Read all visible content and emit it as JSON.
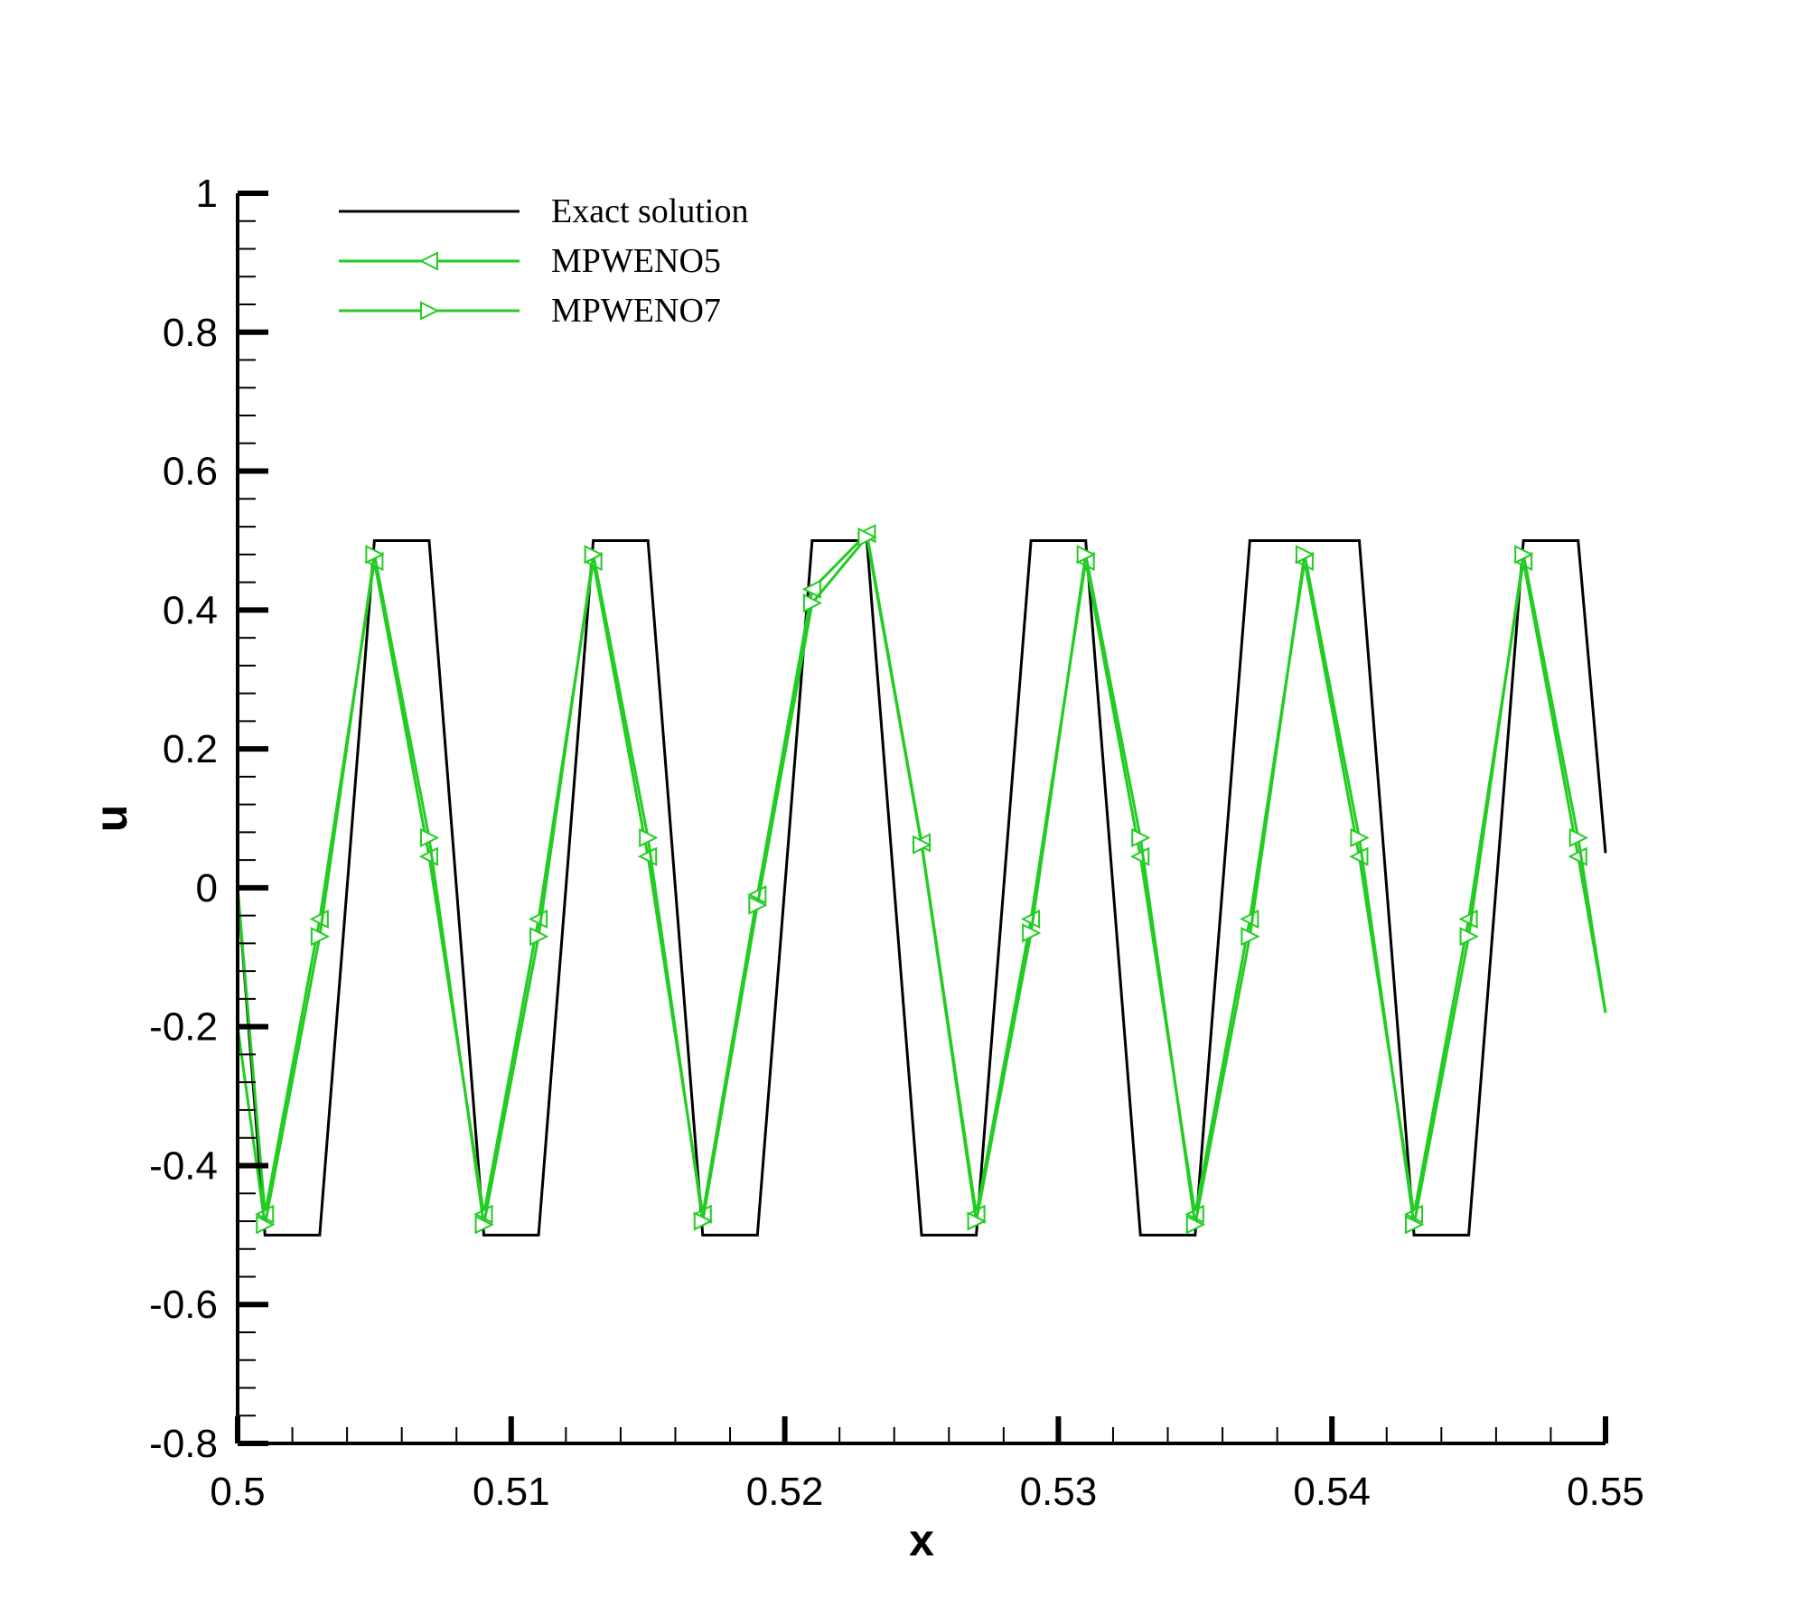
{
  "chart_data": {
    "type": "line",
    "title": "",
    "xlabel": "x",
    "ylabel": "u",
    "xlim": [
      0.5,
      0.55
    ],
    "ylim": [
      -0.8,
      1
    ],
    "xticks": [
      0.5,
      0.51,
      0.52,
      0.53,
      0.54,
      0.55
    ],
    "xtick_labels": [
      "0.5",
      "0.51",
      "0.52",
      "0.53",
      "0.54",
      "0.55"
    ],
    "yticks": [
      -0.8,
      -0.6,
      -0.4,
      -0.2,
      0,
      0.2,
      0.4,
      0.6,
      0.8,
      1
    ],
    "ytick_labels": [
      "-0.8",
      "-0.6",
      "-0.4",
      "-0.2",
      "0",
      "0.2",
      "0.4",
      "0.6",
      "0.8",
      "1"
    ],
    "grid": false,
    "legend_position": "top-left",
    "series": [
      {
        "name": "Exact solution",
        "color": "#000000",
        "marker": "none",
        "x": [
          0.5,
          0.501,
          0.503,
          0.505,
          0.507,
          0.509,
          0.511,
          0.513,
          0.515,
          0.517,
          0.519,
          0.521,
          0.523,
          0.525,
          0.527,
          0.529,
          0.531,
          0.533,
          0.535,
          0.537,
          0.541,
          0.543,
          0.545,
          0.547,
          0.549,
          0.55
        ],
        "y": [
          0,
          -0.5,
          -0.5,
          0.5,
          0.5,
          -0.5,
          -0.5,
          0.5,
          0.5,
          -0.5,
          -0.5,
          0.5,
          0.5,
          -0.5,
          -0.5,
          0.5,
          0.5,
          -0.5,
          -0.5,
          0.5,
          0.5,
          -0.5,
          -0.5,
          0.5,
          0.5,
          0.05
        ]
      },
      {
        "name": "MPWENO5",
        "color": "#22cc22",
        "marker": "triangle-left",
        "x": [
          0.5,
          0.501,
          0.503,
          0.505,
          0.507,
          0.509,
          0.511,
          0.513,
          0.515,
          0.517,
          0.519,
          0.521,
          0.523,
          0.525,
          0.527,
          0.529,
          0.531,
          0.533,
          0.535,
          0.537,
          0.539,
          0.541,
          0.543,
          0.545,
          0.547,
          0.549,
          0.55
        ],
        "y": [
          0,
          -0.47,
          -0.045,
          0.47,
          0.045,
          -0.47,
          -0.045,
          0.47,
          0.045,
          -0.47,
          -0.01,
          0.43,
          0.51,
          0.065,
          -0.47,
          -0.045,
          0.47,
          0.045,
          -0.47,
          -0.045,
          0.47,
          0.045,
          -0.47,
          -0.045,
          0.47,
          0.045,
          -0.18
        ]
      },
      {
        "name": "MPWENO7",
        "color": "#22cc22",
        "marker": "triangle-right",
        "x": [
          0.5,
          0.501,
          0.503,
          0.505,
          0.507,
          0.509,
          0.511,
          0.513,
          0.515,
          0.517,
          0.519,
          0.521,
          0.523,
          0.525,
          0.527,
          0.529,
          0.531,
          0.533,
          0.535,
          0.537,
          0.539,
          0.541,
          0.543,
          0.545,
          0.547,
          0.549,
          0.55
        ],
        "y": [
          -0.2,
          -0.485,
          -0.07,
          0.48,
          0.072,
          -0.485,
          -0.07,
          0.48,
          0.072,
          -0.48,
          -0.025,
          0.41,
          0.505,
          0.062,
          -0.48,
          -0.065,
          0.48,
          0.072,
          -0.485,
          -0.07,
          0.48,
          0.072,
          -0.485,
          -0.07,
          0.48,
          0.072,
          -0.18
        ]
      }
    ]
  }
}
